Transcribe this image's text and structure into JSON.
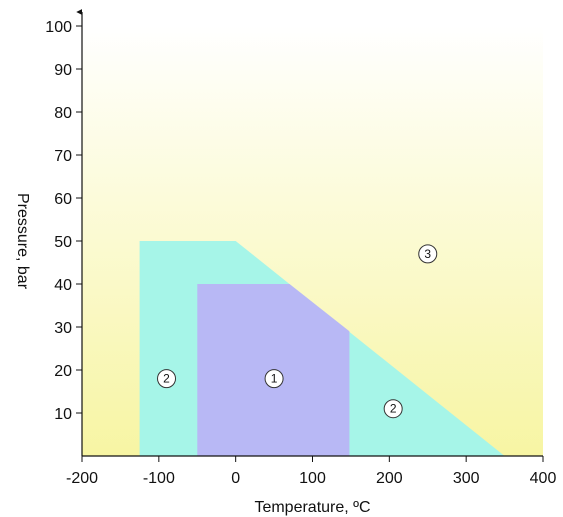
{
  "chart_data": {
    "type": "area",
    "title": "",
    "xlabel": "Temperature, ºC",
    "ylabel": "Pressure, bar",
    "xlim": [
      -200,
      400
    ],
    "ylim": [
      0,
      100
    ],
    "x_ticks": [
      -200,
      -100,
      0,
      100,
      200,
      300,
      400
    ],
    "y_ticks": [
      10,
      20,
      30,
      40,
      50,
      60,
      70,
      80,
      90,
      100
    ],
    "grid": false,
    "legend": "none",
    "background_gradient": {
      "top": "#ffffff",
      "bottom": "#f7f5a3"
    },
    "regions": [
      {
        "label": "2",
        "color": "#a6f5e8",
        "polygon": [
          [
            -125,
            0
          ],
          [
            -125,
            50
          ],
          [
            0,
            50
          ],
          [
            350,
            0
          ]
        ],
        "label_at": [
          -90,
          18
        ]
      },
      {
        "label": "1",
        "color": "#b8b8f5",
        "polygon": [
          [
            -50,
            0
          ],
          [
            -50,
            40
          ],
          [
            70,
            40
          ],
          [
            148,
            29
          ],
          [
            148,
            0
          ]
        ],
        "label_at": [
          50,
          18
        ]
      }
    ],
    "annotations": [
      {
        "text": "2",
        "x": 205,
        "y": 11
      },
      {
        "text": "3",
        "x": 250,
        "y": 47
      }
    ]
  }
}
